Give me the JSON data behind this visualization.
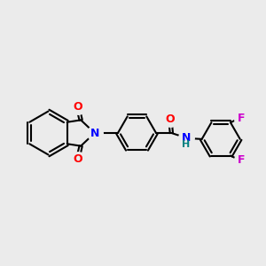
{
  "background_color": "#ebebeb",
  "bond_color": "#000000",
  "bond_width": 1.5,
  "font_size": 9,
  "N_color": "#0000ff",
  "O_color": "#ff0000",
  "F_color": "#cc00cc",
  "H_color": "#008080",
  "figsize": [
    3.0,
    3.0
  ],
  "dpi": 100,
  "xlim": [
    0,
    10
  ],
  "ylim": [
    1,
    9
  ]
}
